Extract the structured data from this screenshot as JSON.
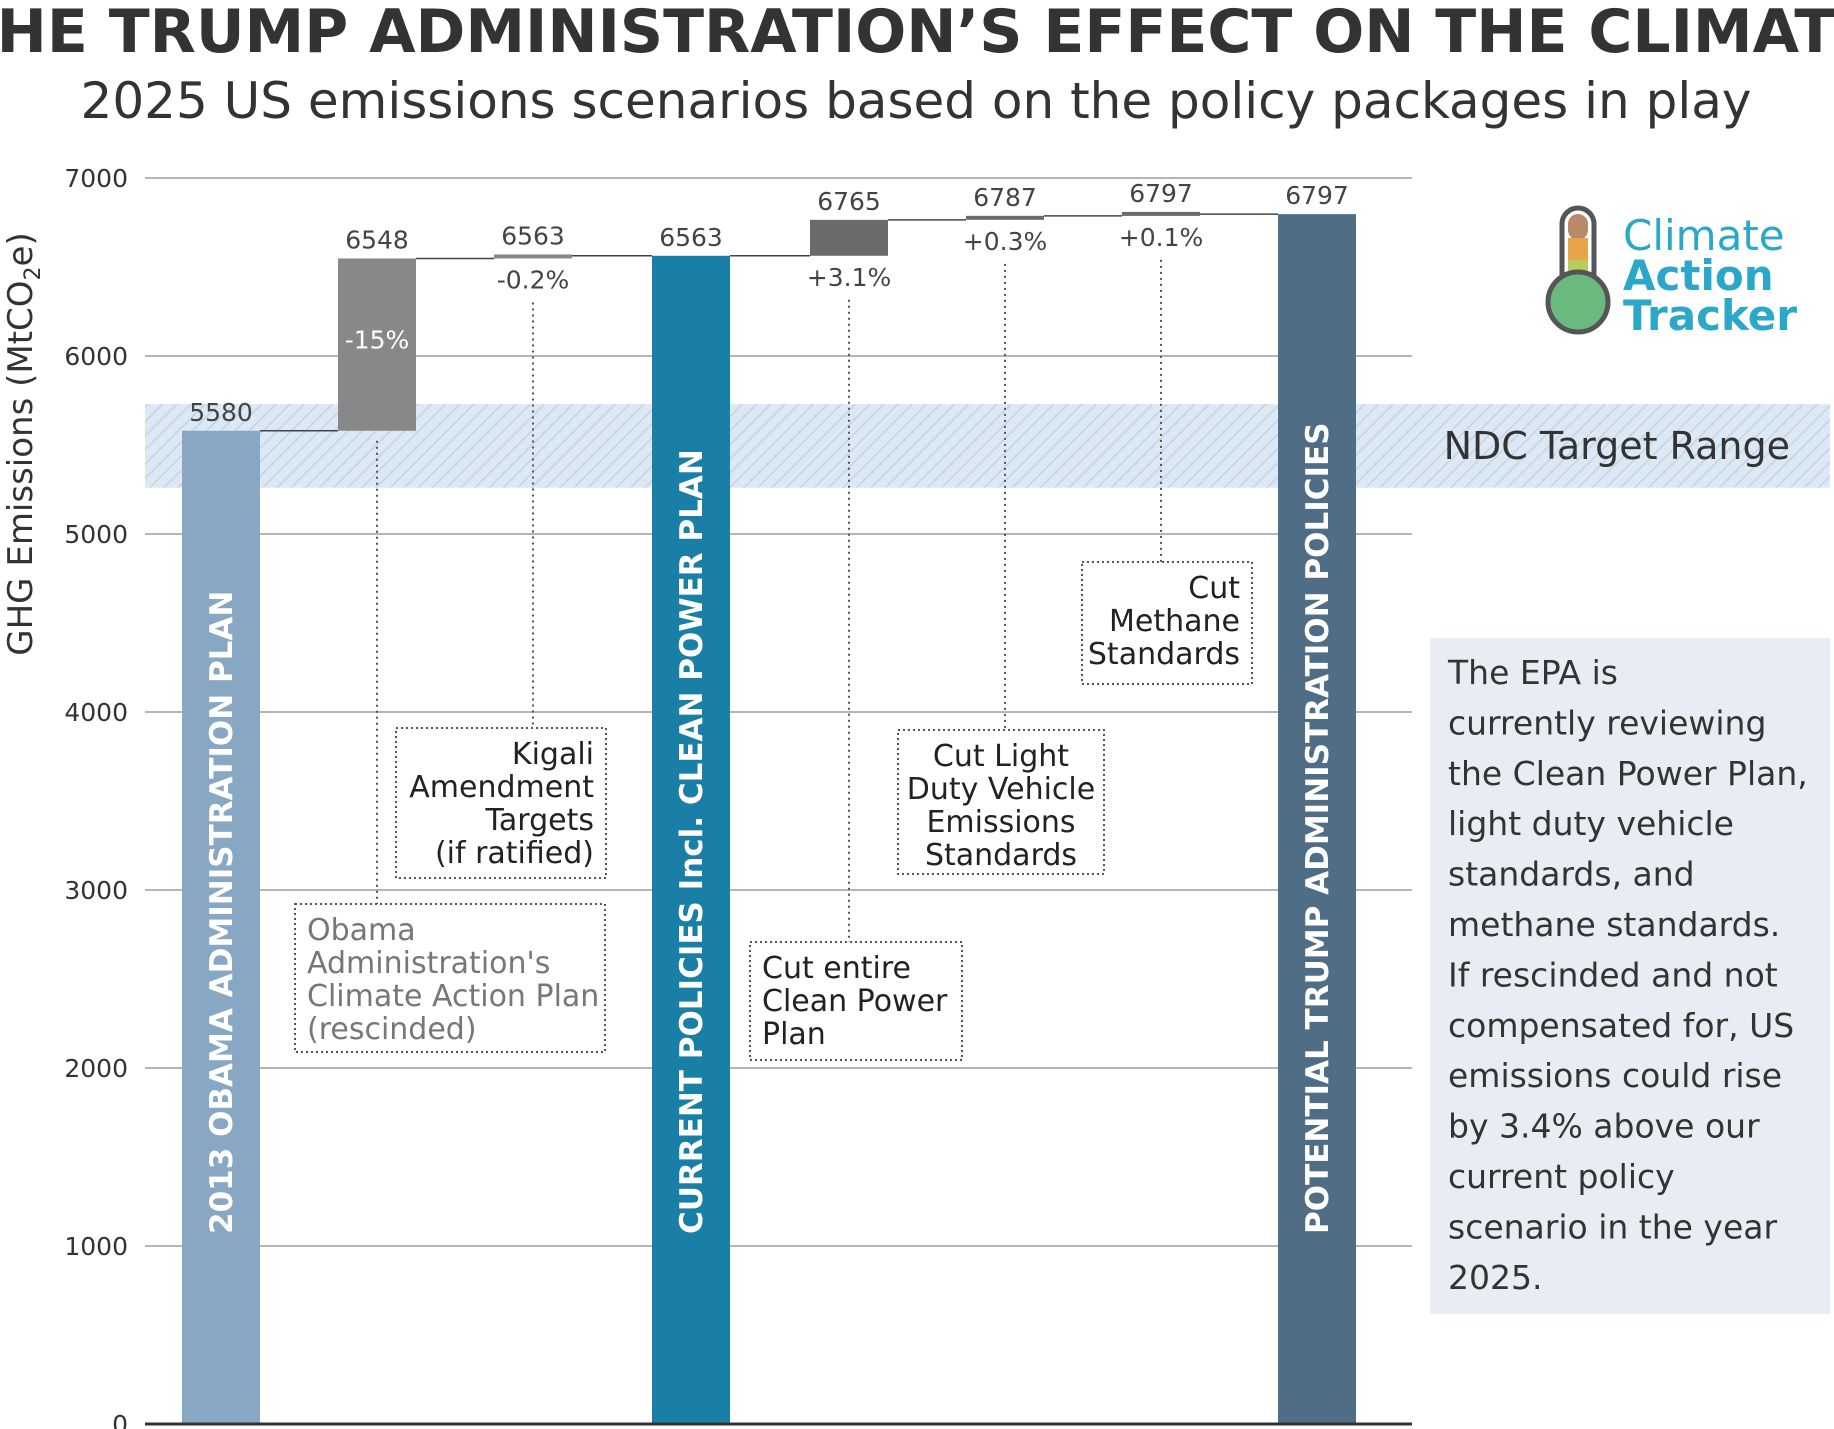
{
  "title": "THE TRUMP ADMINISTRATION’S EFFECT ON THE CLIMATE",
  "subtitle": "2025 US emissions scenarios based on the policy packages in play",
  "logo": {
    "line1": "Climate",
    "line2": "Action",
    "line3": "Tracker"
  },
  "note_lines": [
    "The EPA is",
    "currently reviewing",
    "the Clean Power Plan,",
    "light duty vehicle",
    "standards, and",
    "methane standards.",
    "If rescinded and not",
    "compensated for, US",
    "emissions could rise",
    "by 3.4% above our",
    "current policy",
    "scenario in the year",
    "2025."
  ],
  "colors": {
    "obama": "#87a7c3",
    "current": "#1a7fa6",
    "trump": "#4f6d84",
    "step_light": "#888888",
    "step_dark": "#6b6b6b",
    "ndc_band": "#dce8f3",
    "note_bg": "#e8edf4"
  },
  "chart_data": {
    "type": "bar",
    "subtype": "waterfall",
    "ylabel": "GHG Emissions (MtCO2e)",
    "ylim": [
      0,
      7000
    ],
    "yticks": [
      0,
      1000,
      2000,
      3000,
      4000,
      5000,
      6000,
      7000
    ],
    "grid": true,
    "ndc_band": {
      "label": "NDC Target Range",
      "range": [
        5260,
        5730
      ]
    },
    "bars": [
      {
        "kind": "total",
        "color": "obama",
        "value": 5580,
        "value_label": "5580",
        "label": "2013 OBAMA ADMINISTRATION PLAN"
      },
      {
        "kind": "step",
        "color": "step_light",
        "from": 5580,
        "to": 6548,
        "value_label": "6548",
        "change_label": "-15%",
        "annotation": [
          "Obama",
          "Administration's",
          "Climate Action Plan",
          "(rescinded)"
        ]
      },
      {
        "kind": "step",
        "color": "step_light",
        "from": 6548,
        "to": 6563,
        "value_label": "6563",
        "change_label": "-0.2%",
        "annotation": [
          "Kigali",
          "Amendment",
          "Targets",
          "(if ratified)"
        ]
      },
      {
        "kind": "total",
        "color": "current",
        "value": 6563,
        "value_label": "6563",
        "label": "CURRENT POLICIES Incl. CLEAN POWER PLAN"
      },
      {
        "kind": "step",
        "color": "step_dark",
        "from": 6563,
        "to": 6765,
        "value_label": "6765",
        "change_label": "+3.1%",
        "annotation": [
          "Cut entire",
          "Clean Power",
          "Plan"
        ]
      },
      {
        "kind": "step",
        "color": "step_dark",
        "from": 6765,
        "to": 6787,
        "value_label": "6787",
        "change_label": "+0.3%",
        "annotation": [
          "Cut Light",
          "Duty Vehicle",
          "Emissions",
          "Standards"
        ]
      },
      {
        "kind": "step",
        "color": "step_dark",
        "from": 6787,
        "to": 6797,
        "value_label": "6797",
        "change_label": "+0.1%",
        "annotation": [
          "Cut",
          "Methane",
          "Standards"
        ]
      },
      {
        "kind": "total",
        "color": "trump",
        "value": 6797,
        "value_label": "6797",
        "label": "POTENTIAL TRUMP ADMINISTRATION POLICIES"
      }
    ]
  }
}
